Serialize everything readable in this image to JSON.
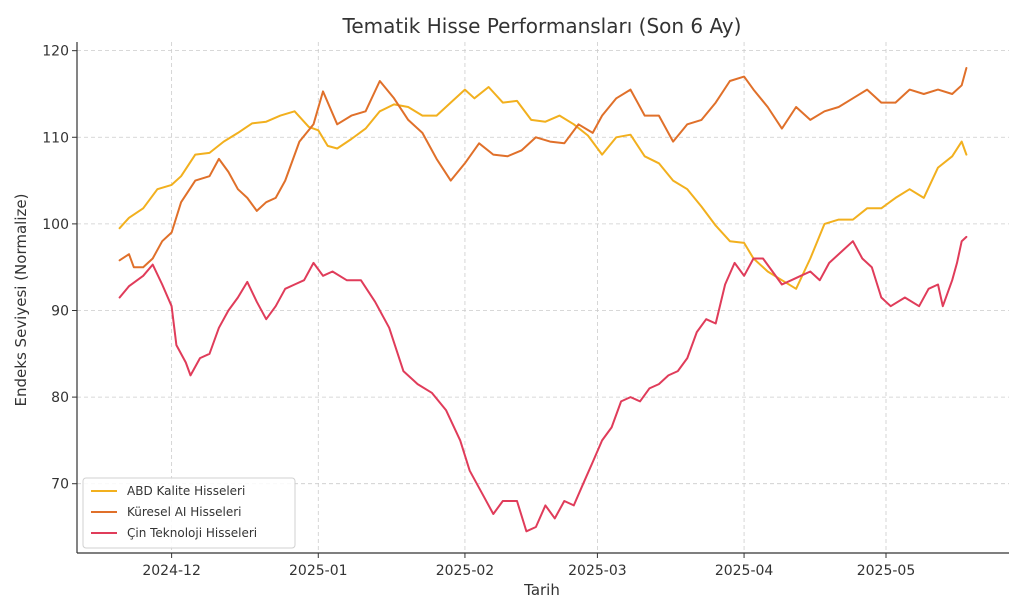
{
  "chart_data": {
    "type": "line",
    "title": "Tematik Hisse Performansları (Son 6 Ay)",
    "xlabel": "Tarih",
    "ylabel": "Endeks Seviyesi (Normalize)",
    "x_range": [
      "2024-11-20",
      "2025-05-18"
    ],
    "ylim": [
      62,
      121
    ],
    "x_ticks": [
      {
        "date": "2024-12-01",
        "label": "2024-12"
      },
      {
        "date": "2025-01-01",
        "label": "2025-01"
      },
      {
        "date": "2025-02-01",
        "label": "2025-02"
      },
      {
        "date": "2025-03-01",
        "label": "2025-03"
      },
      {
        "date": "2025-04-01",
        "label": "2025-04"
      },
      {
        "date": "2025-05-01",
        "label": "2025-05"
      }
    ],
    "y_ticks": [
      70,
      80,
      90,
      100,
      110,
      120
    ],
    "grid": true,
    "legend_position": "lower-left",
    "series": [
      {
        "name": "ABD Kalite Hisseleri",
        "color": "#f2b01e",
        "points": [
          [
            "2024-11-20",
            99.5
          ],
          [
            "2024-11-22",
            100.7
          ],
          [
            "2024-11-25",
            101.8
          ],
          [
            "2024-11-28",
            104.0
          ],
          [
            "2024-12-01",
            104.5
          ],
          [
            "2024-12-03",
            105.5
          ],
          [
            "2024-12-06",
            108.0
          ],
          [
            "2024-12-09",
            108.2
          ],
          [
            "2024-12-12",
            109.5
          ],
          [
            "2024-12-15",
            110.5
          ],
          [
            "2024-12-18",
            111.6
          ],
          [
            "2024-12-21",
            111.8
          ],
          [
            "2024-12-24",
            112.5
          ],
          [
            "2024-12-27",
            113.0
          ],
          [
            "2024-12-30",
            111.2
          ],
          [
            "2025-01-01",
            110.8
          ],
          [
            "2025-01-03",
            109.0
          ],
          [
            "2025-01-05",
            108.7
          ],
          [
            "2025-01-08",
            109.8
          ],
          [
            "2025-01-11",
            111.0
          ],
          [
            "2025-01-14",
            113.0
          ],
          [
            "2025-01-17",
            113.8
          ],
          [
            "2025-01-20",
            113.5
          ],
          [
            "2025-01-23",
            112.5
          ],
          [
            "2025-01-26",
            112.5
          ],
          [
            "2025-01-29",
            114.0
          ],
          [
            "2025-02-01",
            115.5
          ],
          [
            "2025-02-03",
            114.5
          ],
          [
            "2025-02-06",
            115.8
          ],
          [
            "2025-02-09",
            114.0
          ],
          [
            "2025-02-12",
            114.2
          ],
          [
            "2025-02-15",
            112.0
          ],
          [
            "2025-02-18",
            111.8
          ],
          [
            "2025-02-21",
            112.5
          ],
          [
            "2025-02-24",
            111.5
          ],
          [
            "2025-02-27",
            110.2
          ],
          [
            "2025-03-02",
            108.0
          ],
          [
            "2025-03-05",
            110.0
          ],
          [
            "2025-03-08",
            110.3
          ],
          [
            "2025-03-11",
            107.8
          ],
          [
            "2025-03-14",
            107.0
          ],
          [
            "2025-03-17",
            105.0
          ],
          [
            "2025-03-20",
            104.0
          ],
          [
            "2025-03-23",
            102.0
          ],
          [
            "2025-03-26",
            99.8
          ],
          [
            "2025-03-29",
            98.0
          ],
          [
            "2025-04-01",
            97.8
          ],
          [
            "2025-04-03",
            96.0
          ],
          [
            "2025-04-06",
            94.5
          ],
          [
            "2025-04-09",
            93.5
          ],
          [
            "2025-04-12",
            92.5
          ],
          [
            "2025-04-15",
            96.0
          ],
          [
            "2025-04-18",
            100.0
          ],
          [
            "2025-04-21",
            100.5
          ],
          [
            "2025-04-24",
            100.5
          ],
          [
            "2025-04-27",
            101.8
          ],
          [
            "2025-04-30",
            101.8
          ],
          [
            "2025-05-03",
            103.0
          ],
          [
            "2025-05-06",
            104.0
          ],
          [
            "2025-05-09",
            103.0
          ],
          [
            "2025-05-12",
            106.5
          ],
          [
            "2025-05-15",
            107.8
          ],
          [
            "2025-05-17",
            109.5
          ],
          [
            "2025-05-18",
            108.0
          ]
        ]
      },
      {
        "name": "Küresel AI Hisseleri",
        "color": "#e0702a",
        "points": [
          [
            "2024-11-20",
            95.8
          ],
          [
            "2024-11-22",
            96.5
          ],
          [
            "2024-11-23",
            95.0
          ],
          [
            "2024-11-25",
            95.0
          ],
          [
            "2024-11-27",
            96.0
          ],
          [
            "2024-11-29",
            98.0
          ],
          [
            "2024-12-01",
            99.0
          ],
          [
            "2024-12-03",
            102.5
          ],
          [
            "2024-12-06",
            105.0
          ],
          [
            "2024-12-09",
            105.5
          ],
          [
            "2024-12-11",
            107.5
          ],
          [
            "2024-12-13",
            106.0
          ],
          [
            "2024-12-15",
            104.0
          ],
          [
            "2024-12-17",
            103.0
          ],
          [
            "2024-12-19",
            101.5
          ],
          [
            "2024-12-21",
            102.5
          ],
          [
            "2024-12-23",
            103.0
          ],
          [
            "2024-12-25",
            105.0
          ],
          [
            "2024-12-28",
            109.5
          ],
          [
            "2024-12-31",
            111.5
          ],
          [
            "2025-01-02",
            115.3
          ],
          [
            "2025-01-05",
            111.5
          ],
          [
            "2025-01-08",
            112.5
          ],
          [
            "2025-01-11",
            113.0
          ],
          [
            "2025-01-14",
            116.5
          ],
          [
            "2025-01-17",
            114.5
          ],
          [
            "2025-01-20",
            112.0
          ],
          [
            "2025-01-23",
            110.5
          ],
          [
            "2025-01-26",
            107.5
          ],
          [
            "2025-01-29",
            105.0
          ],
          [
            "2025-02-01",
            107.0
          ],
          [
            "2025-02-04",
            109.3
          ],
          [
            "2025-02-07",
            108.0
          ],
          [
            "2025-02-10",
            107.8
          ],
          [
            "2025-02-13",
            108.5
          ],
          [
            "2025-02-16",
            110.0
          ],
          [
            "2025-02-19",
            109.5
          ],
          [
            "2025-02-22",
            109.3
          ],
          [
            "2025-02-25",
            111.5
          ],
          [
            "2025-02-28",
            110.5
          ],
          [
            "2025-03-02",
            112.5
          ],
          [
            "2025-03-05",
            114.5
          ],
          [
            "2025-03-08",
            115.5
          ],
          [
            "2025-03-11",
            112.5
          ],
          [
            "2025-03-14",
            112.5
          ],
          [
            "2025-03-17",
            109.5
          ],
          [
            "2025-03-20",
            111.5
          ],
          [
            "2025-03-23",
            112.0
          ],
          [
            "2025-03-26",
            114.0
          ],
          [
            "2025-03-29",
            116.5
          ],
          [
            "2025-04-01",
            117.0
          ],
          [
            "2025-04-03",
            115.5
          ],
          [
            "2025-04-06",
            113.5
          ],
          [
            "2025-04-09",
            111.0
          ],
          [
            "2025-04-12",
            113.5
          ],
          [
            "2025-04-15",
            112.0
          ],
          [
            "2025-04-18",
            113.0
          ],
          [
            "2025-04-21",
            113.5
          ],
          [
            "2025-04-24",
            114.5
          ],
          [
            "2025-04-27",
            115.5
          ],
          [
            "2025-04-30",
            114.0
          ],
          [
            "2025-05-03",
            114.0
          ],
          [
            "2025-05-06",
            115.5
          ],
          [
            "2025-05-09",
            115.0
          ],
          [
            "2025-05-12",
            115.5
          ],
          [
            "2025-05-15",
            115.0
          ],
          [
            "2025-05-17",
            116.0
          ],
          [
            "2025-05-18",
            118.0
          ]
        ]
      },
      {
        "name": "Çin Teknoloji Hisseleri",
        "color": "#e03c5a",
        "points": [
          [
            "2024-11-20",
            91.5
          ],
          [
            "2024-11-22",
            92.8
          ],
          [
            "2024-11-25",
            94.0
          ],
          [
            "2024-11-27",
            95.3
          ],
          [
            "2024-11-29",
            93.0
          ],
          [
            "2024-12-01",
            90.5
          ],
          [
            "2024-12-02",
            86.0
          ],
          [
            "2024-12-04",
            84.0
          ],
          [
            "2024-12-05",
            82.5
          ],
          [
            "2024-12-07",
            84.5
          ],
          [
            "2024-12-09",
            85.0
          ],
          [
            "2024-12-11",
            88.0
          ],
          [
            "2024-12-13",
            90.0
          ],
          [
            "2024-12-15",
            91.5
          ],
          [
            "2024-12-17",
            93.3
          ],
          [
            "2024-12-19",
            91.0
          ],
          [
            "2024-12-21",
            89.0
          ],
          [
            "2024-12-23",
            90.5
          ],
          [
            "2024-12-25",
            92.5
          ],
          [
            "2024-12-27",
            93.0
          ],
          [
            "2024-12-29",
            93.5
          ],
          [
            "2024-12-31",
            95.5
          ],
          [
            "2025-01-02",
            94.0
          ],
          [
            "2025-01-04",
            94.5
          ],
          [
            "2025-01-07",
            93.5
          ],
          [
            "2025-01-10",
            93.5
          ],
          [
            "2025-01-13",
            91.0
          ],
          [
            "2025-01-16",
            88.0
          ],
          [
            "2025-01-19",
            83.0
          ],
          [
            "2025-01-22",
            81.5
          ],
          [
            "2025-01-25",
            80.5
          ],
          [
            "2025-01-28",
            78.5
          ],
          [
            "2025-01-31",
            75.0
          ],
          [
            "2025-02-02",
            71.5
          ],
          [
            "2025-02-05",
            68.5
          ],
          [
            "2025-02-07",
            66.5
          ],
          [
            "2025-02-09",
            68.0
          ],
          [
            "2025-02-12",
            68.0
          ],
          [
            "2025-02-14",
            64.5
          ],
          [
            "2025-02-16",
            65.0
          ],
          [
            "2025-02-18",
            67.5
          ],
          [
            "2025-02-20",
            66.0
          ],
          [
            "2025-02-22",
            68.0
          ],
          [
            "2025-02-24",
            67.5
          ],
          [
            "2025-02-26",
            70.0
          ],
          [
            "2025-02-28",
            72.5
          ],
          [
            "2025-03-02",
            75.0
          ],
          [
            "2025-03-04",
            76.5
          ],
          [
            "2025-03-06",
            79.5
          ],
          [
            "2025-03-08",
            80.0
          ],
          [
            "2025-03-10",
            79.5
          ],
          [
            "2025-03-12",
            81.0
          ],
          [
            "2025-03-14",
            81.5
          ],
          [
            "2025-03-16",
            82.5
          ],
          [
            "2025-03-18",
            83.0
          ],
          [
            "2025-03-20",
            84.5
          ],
          [
            "2025-03-22",
            87.5
          ],
          [
            "2025-03-24",
            89.0
          ],
          [
            "2025-03-26",
            88.5
          ],
          [
            "2025-03-28",
            93.0
          ],
          [
            "2025-03-30",
            95.5
          ],
          [
            "2025-04-01",
            94.0
          ],
          [
            "2025-04-03",
            96.0
          ],
          [
            "2025-04-05",
            96.0
          ],
          [
            "2025-04-07",
            94.5
          ],
          [
            "2025-04-09",
            93.0
          ],
          [
            "2025-04-11",
            93.5
          ],
          [
            "2025-04-13",
            94.0
          ],
          [
            "2025-04-15",
            94.5
          ],
          [
            "2025-04-17",
            93.5
          ],
          [
            "2025-04-19",
            95.5
          ],
          [
            "2025-04-22",
            97.0
          ],
          [
            "2025-04-24",
            98.0
          ],
          [
            "2025-04-26",
            96.0
          ],
          [
            "2025-04-28",
            95.0
          ],
          [
            "2025-04-30",
            91.5
          ],
          [
            "2025-05-02",
            90.5
          ],
          [
            "2025-05-05",
            91.5
          ],
          [
            "2025-05-08",
            90.5
          ],
          [
            "2025-05-10",
            92.5
          ],
          [
            "2025-05-12",
            93.0
          ],
          [
            "2025-05-13",
            90.5
          ],
          [
            "2025-05-15",
            93.5
          ],
          [
            "2025-05-16",
            95.5
          ],
          [
            "2025-05-17",
            98.0
          ],
          [
            "2025-05-18",
            98.5
          ]
        ]
      }
    ]
  }
}
